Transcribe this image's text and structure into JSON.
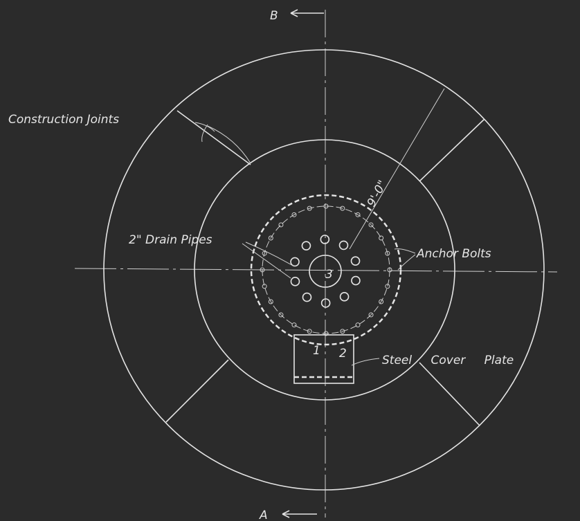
{
  "section_marks": {
    "top": "B",
    "bottom": "A"
  },
  "labels": {
    "construction_joints": "Construction Joints",
    "radius": "9'-0\"",
    "drain_pipes": "2\" Drain Pipes",
    "anchor_bolts": "Anchor Bolts",
    "cover_plate": "Steel Cover Plate"
  },
  "pipe_numbers": [
    "1",
    "2",
    "3"
  ]
}
